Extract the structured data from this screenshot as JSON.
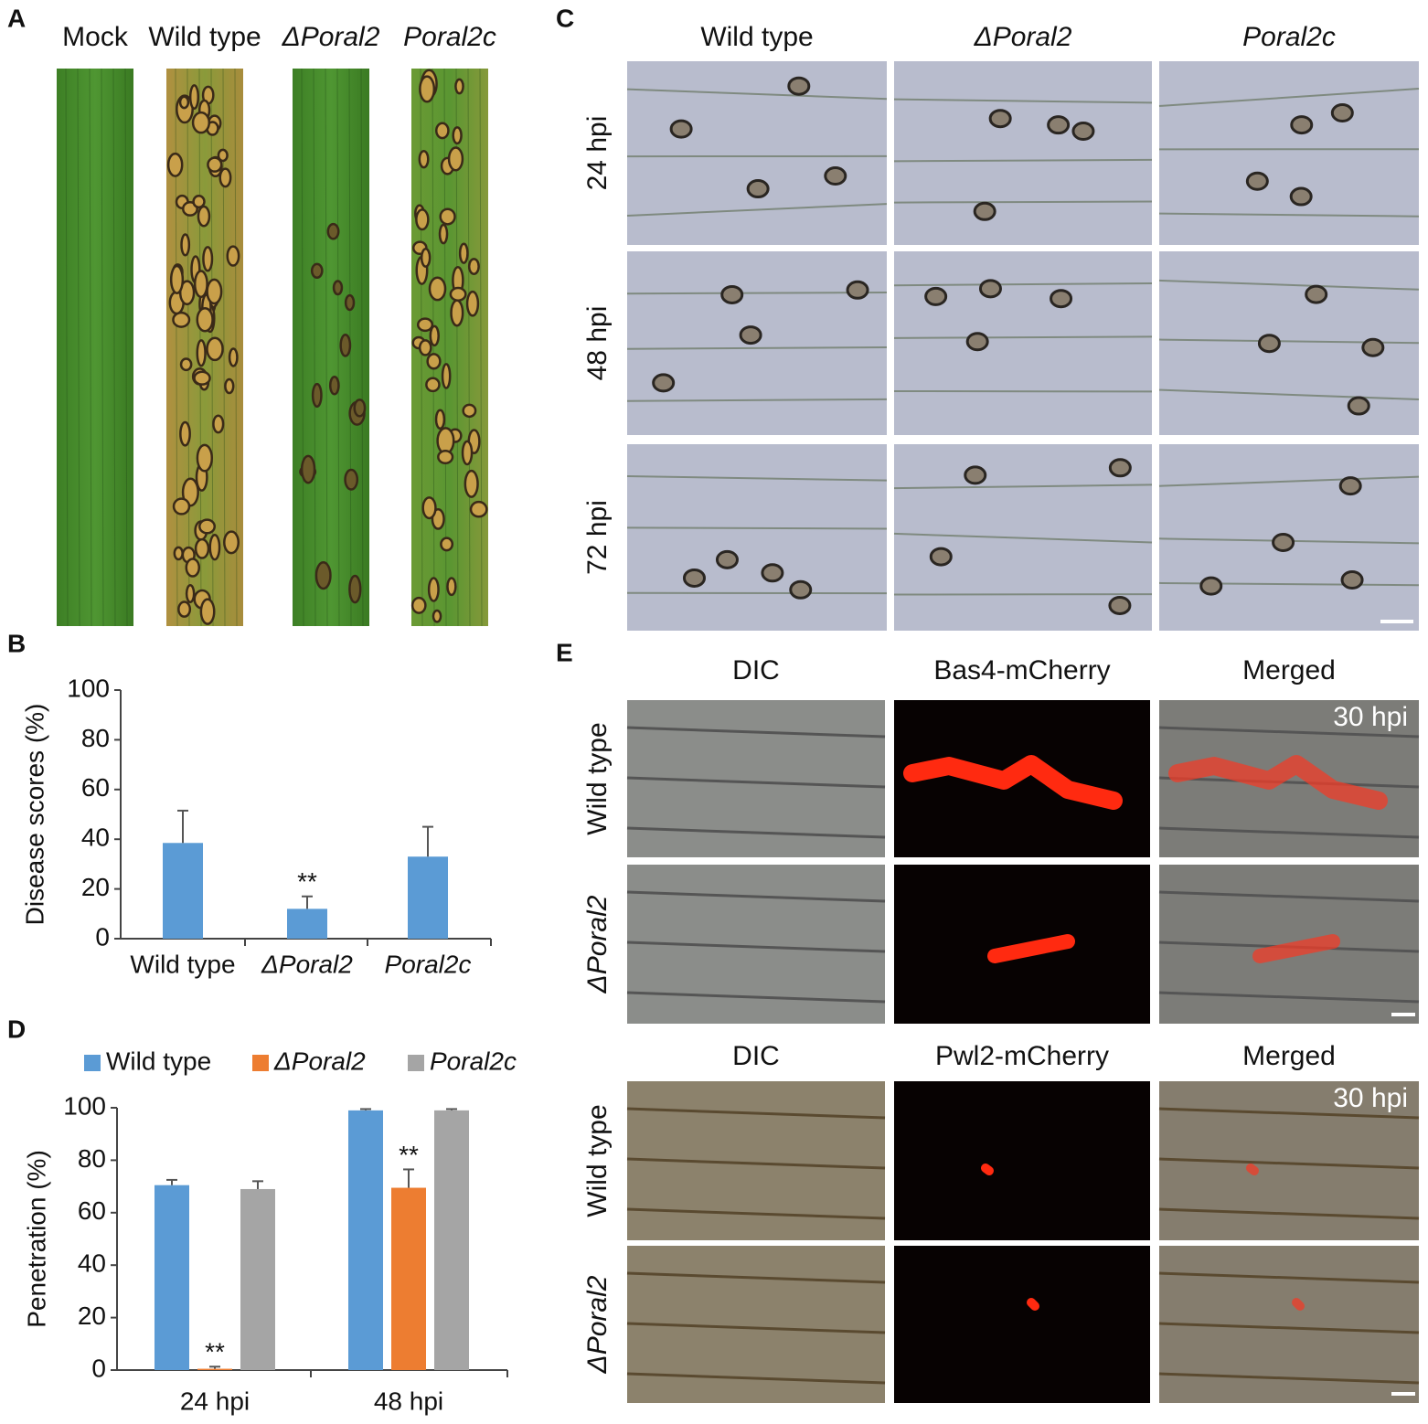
{
  "panel_labels": [
    "A",
    "B",
    "C",
    "D",
    "E"
  ],
  "panel_a": {
    "labels": [
      "Mock",
      "Wild type",
      "ΔPoral2",
      "Poral2c"
    ]
  },
  "panel_c": {
    "columns": [
      "Wild type",
      "ΔPoral2",
      "Poral2c"
    ],
    "rows": [
      "24 hpi",
      "48 hpi",
      "72 hpi"
    ]
  },
  "panel_e": {
    "blocks": [
      {
        "columns": [
          "DIC",
          "Bas4-mCherry",
          "Merged"
        ],
        "rows": [
          "Wild type",
          "ΔPoral2"
        ],
        "time": "30 hpi"
      },
      {
        "columns": [
          "DIC",
          "Pwl2-mCherry",
          "Merged"
        ],
        "rows": [
          "Wild type",
          "ΔPoral2"
        ],
        "time": "30 hpi"
      }
    ]
  },
  "chart_data": [
    {
      "type": "bar",
      "ylabel": "Disease scores (%)",
      "categories": [
        "Wild type",
        "ΔPoral2",
        "Poral2c"
      ],
      "values": [
        38.5,
        12,
        33
      ],
      "errors": [
        13,
        5,
        12
      ],
      "significance": [
        null,
        "**",
        null
      ],
      "color": "#5b9bd5",
      "ylim": [
        0,
        100
      ],
      "yticks": [
        0,
        20,
        40,
        60,
        80,
        100
      ],
      "grid": false
    },
    {
      "type": "bar",
      "ylabel": "Penetration (%)",
      "categories": [
        "24 hpi",
        "48 hpi"
      ],
      "series": [
        {
          "name": "Wild type",
          "color": "#5b9bd5",
          "values": [
            70.5,
            99
          ],
          "errors": [
            2,
            0.5
          ],
          "significance": [
            null,
            null
          ]
        },
        {
          "name": "ΔPoral2",
          "color": "#ed7d31",
          "values": [
            0.5,
            69.5
          ],
          "errors": [
            0.8,
            7
          ],
          "significance": [
            "**",
            "**"
          ]
        },
        {
          "name": "Poral2c",
          "color": "#a5a5a5",
          "values": [
            69,
            99
          ],
          "errors": [
            3,
            0.5
          ],
          "significance": [
            null,
            null
          ]
        }
      ],
      "ylim": [
        0,
        100
      ],
      "yticks": [
        0,
        20,
        40,
        60,
        80,
        100
      ],
      "grid": false,
      "legend": "top"
    }
  ]
}
